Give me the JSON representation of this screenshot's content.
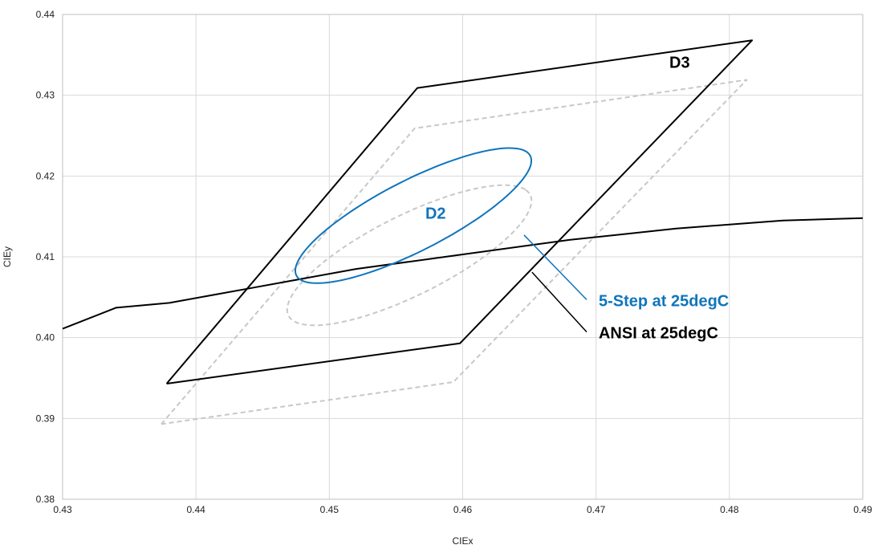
{
  "chart_data": {
    "type": "line",
    "xlabel": "CIEx",
    "ylabel": "CIEy",
    "xlim": [
      0.43,
      0.49
    ],
    "ylim": [
      0.38,
      0.44
    ],
    "xticks": [
      "0.43",
      "0.44",
      "0.45",
      "0.46",
      "0.47",
      "0.48",
      "0.49"
    ],
    "yticks": [
      "0.38",
      "0.39",
      "0.40",
      "0.41",
      "0.42",
      "0.43",
      "0.44"
    ],
    "grid": true,
    "colors": {
      "black": "#000000",
      "blue": "#0f75bc",
      "gray": "#c8c8c8",
      "grid": "#d9d9d9"
    },
    "series": [
      {
        "style": "solid-black",
        "points": [
          [
            0.4378,
            0.3943
          ],
          [
            0.4566,
            0.4309
          ],
          [
            0.4817,
            0.4368
          ],
          [
            0.4598,
            0.3993
          ],
          [
            0.4378,
            0.3943
          ]
        ]
      },
      {
        "style": "dashed-gray",
        "points": [
          [
            0.4374,
            0.3893
          ],
          [
            0.4564,
            0.4259
          ],
          [
            0.4813,
            0.4319
          ],
          [
            0.4593,
            0.3945
          ],
          [
            0.4374,
            0.3893
          ]
        ]
      },
      {
        "style": "solid-black-curve",
        "points": [
          [
            0.43,
            0.4011
          ],
          [
            0.434,
            0.4037
          ],
          [
            0.438,
            0.4043
          ],
          [
            0.444,
            0.4061
          ],
          [
            0.452,
            0.4085
          ],
          [
            0.46,
            0.4103
          ],
          [
            0.468,
            0.4121
          ],
          [
            0.476,
            0.4135
          ],
          [
            0.484,
            0.4145
          ],
          [
            0.49,
            0.4148
          ]
        ]
      }
    ],
    "ellipses": [
      {
        "style": "solid-blue",
        "center": [
          0.4563,
          0.4151
        ],
        "a": 0.0116,
        "b": 0.0037,
        "angle_deg": 43
      },
      {
        "style": "dashed-gray",
        "center": [
          0.456,
          0.4102
        ],
        "a": 0.0119,
        "b": 0.0042,
        "angle_deg": 43
      }
    ],
    "annotations": [
      {
        "text": "D3",
        "x": 0.4755,
        "y": 0.4334,
        "color": "black"
      },
      {
        "text": "D2",
        "x": 0.4572,
        "y": 0.4147,
        "color": "blue"
      },
      {
        "text": "5-Step at 25degC",
        "x": 0.4702,
        "y": 0.4039,
        "color": "blue",
        "leader": [
          [
            0.4646,
            0.4127
          ],
          [
            0.4693,
            0.4047
          ]
        ]
      },
      {
        "text": "ANSI at 25degC",
        "x": 0.4702,
        "y": 0.3999,
        "color": "black",
        "leader": [
          [
            0.4652,
            0.4081
          ],
          [
            0.4693,
            0.4007
          ]
        ]
      }
    ]
  }
}
